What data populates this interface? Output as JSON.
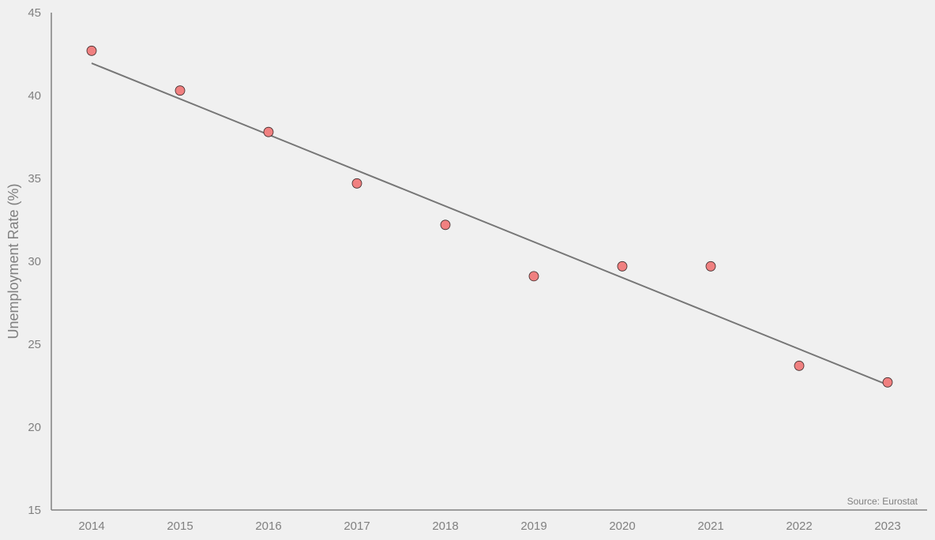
{
  "chart_data": {
    "type": "scatter",
    "x": [
      "2014",
      "2015",
      "2016",
      "2017",
      "2018",
      "2019",
      "2020",
      "2021",
      "2022",
      "2023"
    ],
    "y": [
      42.7,
      40.3,
      37.8,
      34.7,
      32.2,
      29.1,
      29.7,
      29.7,
      23.7,
      22.7
    ],
    "trendline": {
      "type": "linear",
      "start": {
        "x": "2014",
        "y": 41.95
      },
      "end": {
        "x": "2023",
        "y": 22.55
      }
    },
    "title": "",
    "xlabel": "",
    "ylabel": "Unemployment Rate (%)",
    "ylim": [
      15,
      45
    ],
    "yticks": [
      15,
      20,
      25,
      30,
      35,
      40,
      45
    ],
    "grid": false,
    "legend": "none",
    "source_note": "Source: Eurostat",
    "colors": {
      "background": "#f0f0f0",
      "point_fill": "#f08080",
      "point_stroke": "#3a2a2a",
      "trendline": "#777777",
      "axis": "#808080",
      "text": "#808080"
    }
  }
}
